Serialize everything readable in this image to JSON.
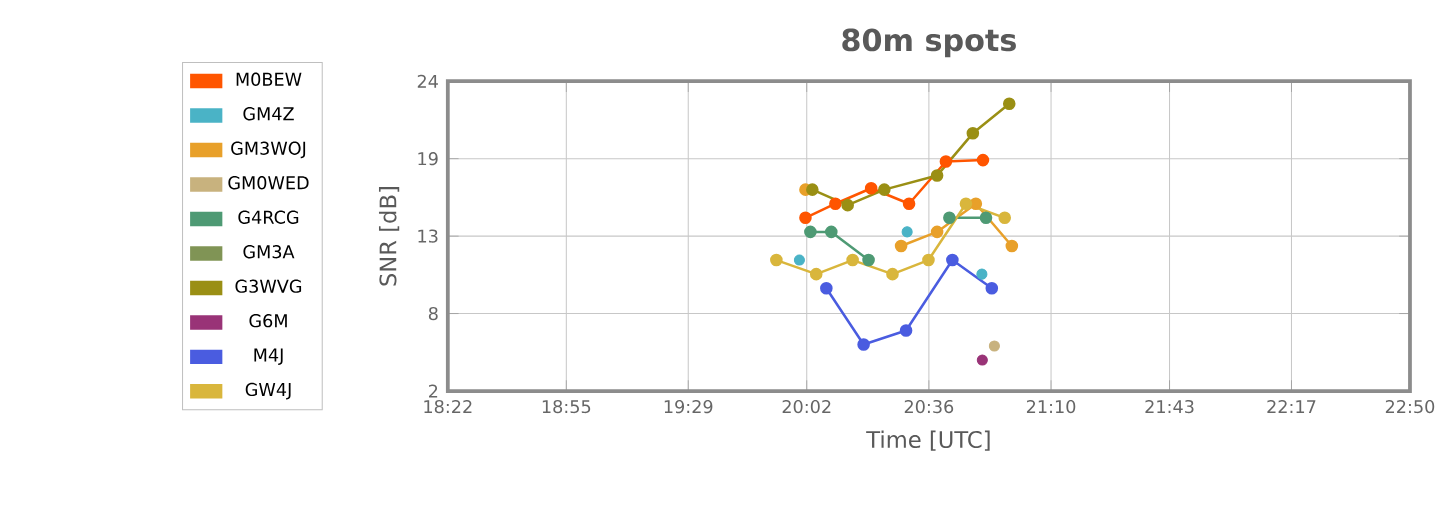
{
  "chart_data": {
    "type": "line",
    "title": "80m spots",
    "xlabel": "Time [UTC]",
    "ylabel": "SNR [dB]",
    "xlim": [
      18.367,
      22.833
    ],
    "ylim": [
      2,
      24
    ],
    "xticks": [
      {
        "value": 18.367,
        "label": "18:22"
      },
      {
        "value": 18.917,
        "label": "18:55"
      },
      {
        "value": 19.483,
        "label": "19:29"
      },
      {
        "value": 20.033,
        "label": "20:02"
      },
      {
        "value": 20.6,
        "label": "20:36"
      },
      {
        "value": 21.167,
        "label": "21:10"
      },
      {
        "value": 21.717,
        "label": "21:43"
      },
      {
        "value": 22.283,
        "label": "22:17"
      },
      {
        "value": 22.833,
        "label": "22:50"
      }
    ],
    "yticks": [
      2,
      {
        "value": 7.5,
        "label": "8"
      },
      13,
      {
        "value": 18.5,
        "label": "19"
      },
      24
    ],
    "grid": true,
    "legend": "left",
    "marker": "circle",
    "line_style": "solid",
    "series": [
      {
        "name": "M0BEW",
        "color": "#ff5500",
        "x": [
          20.027,
          20.166,
          20.332,
          20.508,
          20.679,
          20.851
        ],
        "values": [
          14.3,
          15.3,
          16.4,
          15.3,
          18.3,
          18.4
        ]
      },
      {
        "name": "GM4Z",
        "type": "scatter",
        "color": "#4ab3c6",
        "x": [
          19.999,
          20.499,
          20.846
        ],
        "values": [
          11.3,
          13.3,
          10.3
        ]
      },
      {
        "name": "GM3WOJ",
        "color": "#e8a02a",
        "x": [
          20.027,
          20.25,
          20.471,
          20.638,
          20.818,
          20.985
        ],
        "values": [
          16.3,
          null,
          12.3,
          13.3,
          15.3,
          12.3
        ]
      },
      {
        "name": "GM0WED",
        "type": "scatter",
        "color": "#c8b27e",
        "x": [
          20.904
        ],
        "values": [
          5.2
        ]
      },
      {
        "name": "G4RCG",
        "color": "#4e9a74",
        "x": [
          20.05,
          20.147,
          20.32,
          20.5,
          20.695,
          20.865
        ],
        "values": [
          13.3,
          13.3,
          11.3,
          null,
          14.3,
          14.3
        ]
      },
      {
        "name": "GM3A",
        "color": "#809455"
      },
      {
        "name": "G3WVG",
        "color": "#9a8f14",
        "x": [
          20.059,
          20.223,
          20.393,
          20.638,
          20.804,
          20.973
        ],
        "values": [
          16.3,
          15.2,
          16.3,
          17.3,
          20.3,
          22.4
        ]
      },
      {
        "name": "G6M",
        "type": "scatter",
        "color": "#993377",
        "x": [
          20.848
        ],
        "values": [
          4.2
        ]
      },
      {
        "name": "M4J",
        "color": "#4a5ce0",
        "x": [
          20.124,
          20.297,
          20.494,
          20.709,
          20.892
        ],
        "values": [
          9.3,
          5.3,
          6.3,
          11.3,
          9.3
        ]
      },
      {
        "name": "GW4J",
        "color": "#d9b63c",
        "x": [
          19.892,
          20.077,
          20.246,
          20.431,
          20.598,
          20.772,
          20.952
        ],
        "values": [
          11.3,
          10.3,
          11.3,
          10.3,
          11.3,
          15.3,
          14.3
        ]
      }
    ]
  }
}
